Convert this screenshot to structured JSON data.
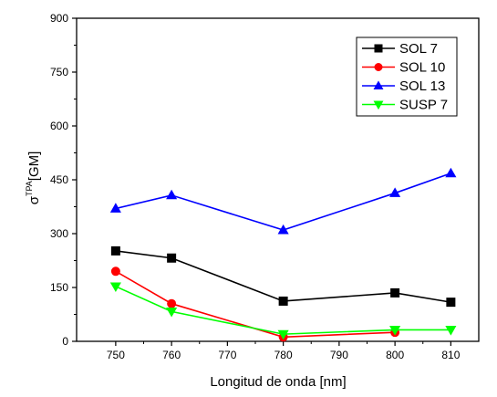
{
  "chart_data": {
    "type": "line",
    "xlabel": "Longitud de onda [nm]",
    "ylabel_base": "σ",
    "ylabel_sup": "TPA",
    "ylabel_unit": "[GM]",
    "xlim": [
      743,
      815
    ],
    "ylim": [
      0,
      900
    ],
    "xticks": [
      750,
      760,
      770,
      780,
      790,
      800,
      810
    ],
    "yticks": [
      0,
      150,
      300,
      450,
      600,
      750,
      900
    ],
    "grid": false,
    "legend_position": "top-right",
    "series": [
      {
        "name": "SOL 7",
        "color": "#000000",
        "marker": "square",
        "x": [
          750,
          760,
          780,
          800,
          810
        ],
        "y": [
          252,
          232,
          112,
          135,
          109
        ]
      },
      {
        "name": "SOL 10",
        "color": "#ff0000",
        "marker": "circle",
        "x": [
          750,
          760,
          780,
          800
        ],
        "y": [
          195,
          105,
          12,
          25
        ]
      },
      {
        "name": "SOL 13",
        "color": "#0000ff",
        "marker": "triangle-up",
        "x": [
          750,
          760,
          780,
          800,
          810
        ],
        "y": [
          370,
          407,
          310,
          413,
          468
        ]
      },
      {
        "name": "SUSP 7",
        "color": "#00ff00",
        "marker": "triangle-down",
        "x": [
          750,
          760,
          780,
          800,
          810
        ],
        "y": [
          153,
          83,
          20,
          32,
          32
        ]
      }
    ]
  }
}
